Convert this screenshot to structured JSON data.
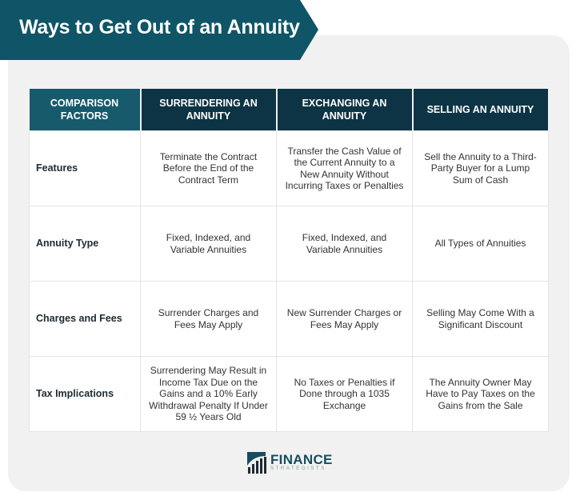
{
  "title": "Ways to Get Out of an Annuity",
  "table": {
    "headers": [
      "COMPARISON FACTORS",
      "SURRENDERING AN ANNUITY",
      "EXCHANGING AN ANNUITY",
      "SELLING AN ANNUITY"
    ],
    "rows": [
      {
        "factor": "Features",
        "cells": [
          "Terminate the Contract Before the End of the Contract Term",
          "Transfer the Cash Value of the Current Annuity to a New Annuity Without Incurring Taxes or Penalties",
          "Sell the Annuity to a Third-Party Buyer for a Lump Sum of Cash"
        ]
      },
      {
        "factor": "Annuity Type",
        "cells": [
          "Fixed, Indexed, and Variable Annuities",
          "Fixed, Indexed, and Variable Annuities",
          "All Types of Annuities"
        ]
      },
      {
        "factor": "Charges and Fees",
        "cells": [
          "Surrender Charges and Fees May Apply",
          "New Surrender Charges or Fees May Apply",
          "Selling May Come With a Significant Discount"
        ]
      },
      {
        "factor": "Tax Implications",
        "cells": [
          "Surrendering May Result in Income Tax Due on the Gains and a 10% Early Withdrawal Penalty If Under 59 ½ Years Old",
          "No Taxes or Penalties if Done through a 1035 Exchange",
          "The Annuity Owner May Have to Pay Taxes on the Gains from the Sale"
        ]
      }
    ]
  },
  "logo": {
    "name": "FINANCE",
    "sub": "STRATEGISTS"
  },
  "colors": {
    "banner": "#0f5567",
    "header_dark": "#0d3444",
    "header_first": "#165a6c"
  }
}
